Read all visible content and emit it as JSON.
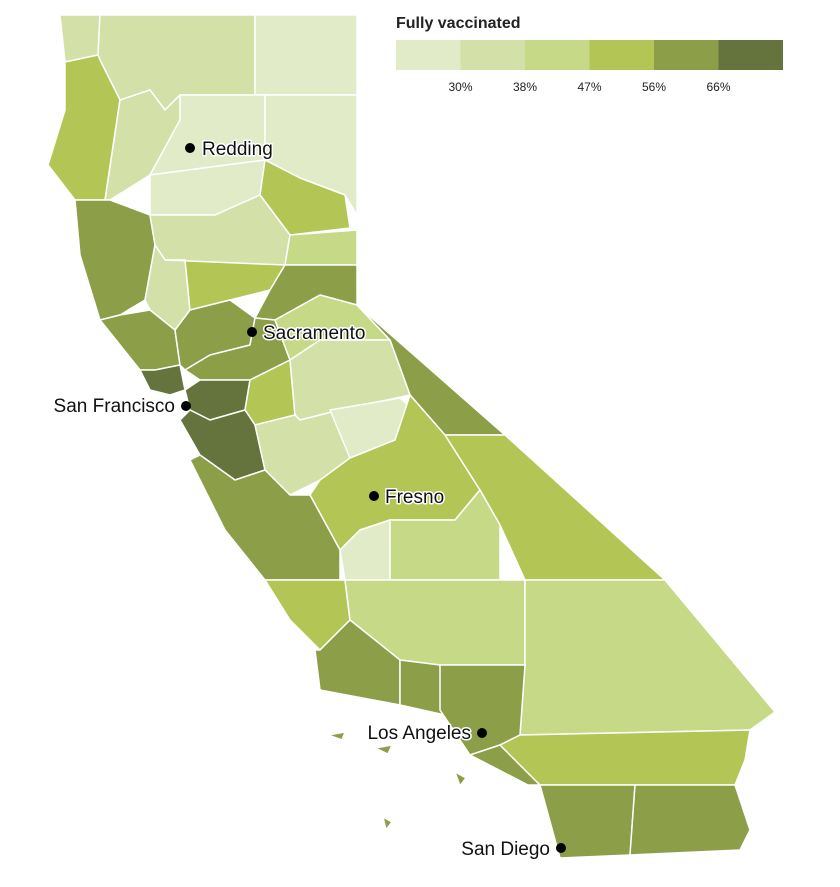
{
  "legend": {
    "title": "Fully vaccinated",
    "colors": [
      "#e1ebc8",
      "#d3e0a8",
      "#c6d987",
      "#b3c655",
      "#8c9e47",
      "#65733c"
    ],
    "ticks": [
      "30%",
      "38%",
      "47%",
      "56%",
      "66%"
    ]
  },
  "cities": [
    "Redding",
    "Sacramento",
    "San Francisco",
    "Fresno",
    "Los Angeles",
    "San Diego"
  ]
}
